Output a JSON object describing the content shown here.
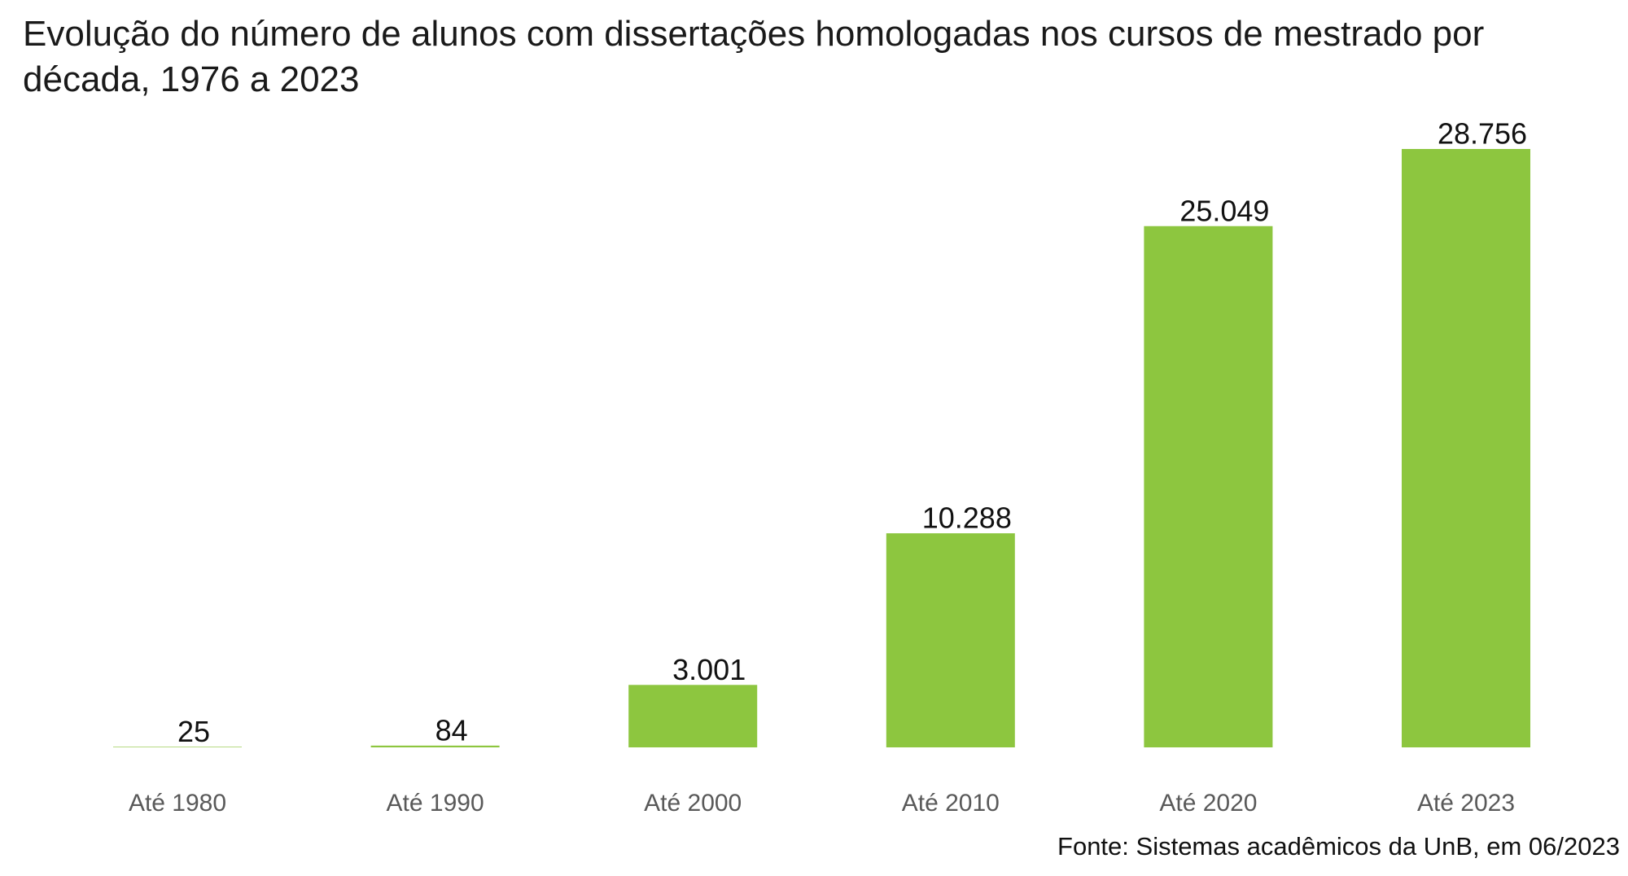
{
  "chart_data": {
    "type": "bar",
    "title": "Evolução do número de alunos com dissertações homologadas nos cursos de mestrado por década, 1976 a 2023",
    "categories": [
      "Até 1980",
      "Até 1990",
      "Até 2000",
      "Até 2010",
      "Até 2020",
      "Até 2023"
    ],
    "values": [
      25,
      84,
      3001,
      10288,
      25049,
      28756
    ],
    "value_labels": [
      "25",
      "84",
      "3.001",
      "10.288",
      "25.049",
      "28.756"
    ],
    "color": "#8dc63f",
    "source": "Fonte: Sistemas acadêmicos da UnB, em 06/2023"
  }
}
